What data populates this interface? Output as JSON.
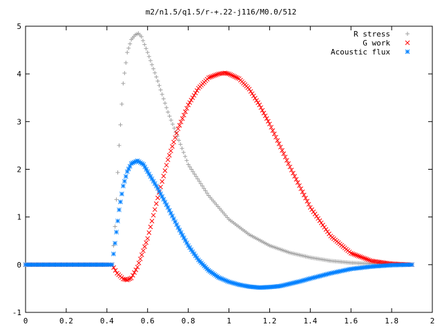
{
  "chart_data": {
    "type": "scatter",
    "title": "m2/n1.5/q1.5/r-+.22-j116/M0.0/512",
    "xlabel": "",
    "ylabel": "",
    "xlim": [
      0,
      2
    ],
    "ylim": [
      -1,
      5
    ],
    "xticks": [
      "0",
      "0.2",
      "0.4",
      "0.6",
      "0.8",
      "1",
      "1.2",
      "1.4",
      "1.6",
      "1.8",
      "2"
    ],
    "yticks": [
      "-1",
      "0",
      "1",
      "2",
      "3",
      "4",
      "5"
    ],
    "grid": false,
    "legend_position": "top-right",
    "series": [
      {
        "name": "R stress",
        "marker": "+",
        "color": "#a0a0a0",
        "x": [
          0.0,
          0.1,
          0.2,
          0.3,
          0.4,
          0.425,
          0.44,
          0.46,
          0.48,
          0.5,
          0.52,
          0.54,
          0.555,
          0.57,
          0.6,
          0.65,
          0.7,
          0.8,
          0.9,
          1.0,
          1.1,
          1.2,
          1.3,
          1.4,
          1.5,
          1.6,
          1.7,
          1.8,
          1.9
        ],
        "y": [
          0.0,
          0.0,
          0.0,
          0.0,
          0.0,
          0.0,
          0.8,
          2.5,
          3.8,
          4.45,
          4.72,
          4.82,
          4.85,
          4.78,
          4.45,
          3.85,
          3.2,
          2.1,
          1.45,
          0.95,
          0.63,
          0.4,
          0.25,
          0.15,
          0.08,
          0.04,
          0.02,
          0.01,
          0.0
        ]
      },
      {
        "name": "G work",
        "marker": "x",
        "color": "#ff0000",
        "x": [
          0.0,
          0.1,
          0.2,
          0.3,
          0.4,
          0.425,
          0.45,
          0.48,
          0.5,
          0.52,
          0.55,
          0.6,
          0.65,
          0.7,
          0.75,
          0.8,
          0.85,
          0.9,
          0.95,
          0.98,
          1.0,
          1.05,
          1.1,
          1.15,
          1.2,
          1.3,
          1.4,
          1.5,
          1.6,
          1.7,
          1.8,
          1.9
        ],
        "y": [
          0.0,
          0.0,
          0.0,
          0.0,
          0.0,
          0.0,
          -0.18,
          -0.3,
          -0.32,
          -0.28,
          -0.05,
          0.55,
          1.4,
          2.2,
          2.85,
          3.35,
          3.7,
          3.92,
          4.0,
          4.02,
          4.0,
          3.9,
          3.68,
          3.35,
          2.95,
          2.05,
          1.2,
          0.6,
          0.24,
          0.08,
          0.02,
          0.0
        ]
      },
      {
        "name": "Acoustic flux",
        "marker": "*",
        "color": "#0080ff",
        "x": [
          0.0,
          0.1,
          0.2,
          0.3,
          0.4,
          0.425,
          0.44,
          0.46,
          0.48,
          0.5,
          0.52,
          0.55,
          0.58,
          0.6,
          0.65,
          0.7,
          0.75,
          0.8,
          0.85,
          0.9,
          0.95,
          1.0,
          1.05,
          1.1,
          1.15,
          1.2,
          1.25,
          1.3,
          1.35,
          1.4,
          1.5,
          1.6,
          1.7,
          1.8,
          1.9
        ],
        "y": [
          0.0,
          0.0,
          0.0,
          0.0,
          0.0,
          0.0,
          0.45,
          1.15,
          1.65,
          1.95,
          2.12,
          2.18,
          2.1,
          1.95,
          1.6,
          1.2,
          0.78,
          0.4,
          0.1,
          -0.12,
          -0.27,
          -0.36,
          -0.42,
          -0.46,
          -0.48,
          -0.47,
          -0.45,
          -0.4,
          -0.35,
          -0.29,
          -0.18,
          -0.09,
          -0.04,
          -0.01,
          0.0
        ]
      }
    ]
  }
}
